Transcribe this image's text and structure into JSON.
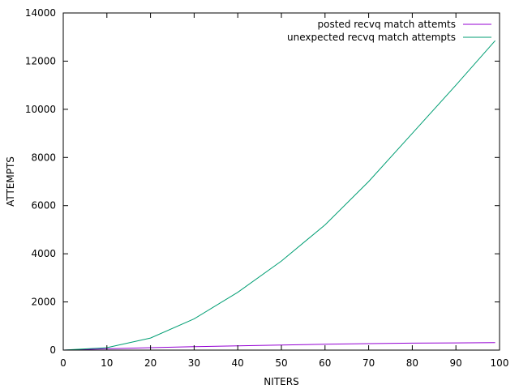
{
  "chart_data": {
    "type": "line",
    "xlabel": "NITERS",
    "ylabel": "ATTEMPTS",
    "xlim": [
      0,
      100
    ],
    "ylim": [
      0,
      14000
    ],
    "xticks": [
      0,
      10,
      20,
      30,
      40,
      50,
      60,
      70,
      80,
      90,
      100
    ],
    "yticks": [
      0,
      2000,
      4000,
      6000,
      8000,
      10000,
      12000,
      14000
    ],
    "legend_position": "top-right",
    "grid": false,
    "series": [
      {
        "name": "posted recvq match attemts",
        "color": "#9400d3",
        "x": [
          0,
          10,
          20,
          30,
          40,
          50,
          60,
          70,
          80,
          90,
          99
        ],
        "y": [
          0,
          55,
          100,
          140,
          175,
          210,
          245,
          270,
          290,
          300,
          310
        ]
      },
      {
        "name": "unexpected recvq match attempts",
        "color": "#009e73",
        "x": [
          0,
          10,
          20,
          30,
          40,
          50,
          60,
          70,
          80,
          90,
          99
        ],
        "y": [
          0,
          100,
          500,
          1300,
          2400,
          3700,
          5200,
          7000,
          9000,
          11000,
          12850
        ]
      }
    ]
  }
}
